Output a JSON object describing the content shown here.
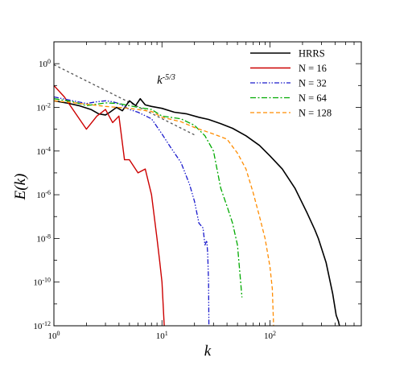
{
  "chart_data": {
    "type": "line",
    "title": "",
    "xlabel": "k",
    "ylabel": "E(k)",
    "xscale": "log",
    "yscale": "log",
    "xlim": [
      1,
      700
    ],
    "ylim": [
      1e-12,
      10
    ],
    "grid": false,
    "legend_position": "top-right",
    "x_tick_labels": [
      {
        "value": 1,
        "base": "10",
        "exp": "0"
      },
      {
        "value": 10,
        "base": "10",
        "exp": "1"
      },
      {
        "value": 100,
        "base": "10",
        "exp": "2"
      }
    ],
    "y_tick_labels": [
      {
        "value": 1,
        "base": "10",
        "exp": "0"
      },
      {
        "value": 0.01,
        "base": "10",
        "exp": "-2"
      },
      {
        "value": 0.0001,
        "base": "10",
        "exp": "-4"
      },
      {
        "value": 1e-06,
        "base": "10",
        "exp": "-6"
      },
      {
        "value": 1e-08,
        "base": "10",
        "exp": "-8"
      },
      {
        "value": 1e-10,
        "base": "10",
        "exp": "-10"
      },
      {
        "value": 1e-12,
        "base": "10",
        "exp": "-12"
      }
    ],
    "annotation": {
      "text": "k",
      "sup": "-5/3",
      "x": 9.0,
      "y": 0.12
    },
    "reference_line": {
      "x": [
        1,
        20
      ],
      "y": [
        0.9,
        0.00055
      ],
      "color": "#555555",
      "dash": "3,3"
    },
    "series": [
      {
        "name": "HRRS",
        "color": "#000000",
        "dash": "",
        "width": 1.6,
        "x": [
          1,
          1.3,
          1.7,
          2.2,
          2.6,
          3.0,
          3.3,
          3.8,
          4.3,
          5.0,
          5.7,
          6.3,
          7.0,
          8,
          10,
          13,
          17,
          22,
          27,
          35,
          45,
          60,
          80,
          100,
          130,
          170,
          220,
          260,
          280,
          330,
          380,
          410,
          430,
          435,
          440
        ],
        "y": [
          0.02,
          0.016,
          0.012,
          0.008,
          0.005,
          0.0045,
          0.006,
          0.01,
          0.007,
          0.02,
          0.012,
          0.025,
          0.013,
          0.011,
          0.009,
          0.006,
          0.005,
          0.0035,
          0.0028,
          0.0018,
          0.0011,
          0.0005,
          0.00018,
          6e-05,
          1.5e-05,
          2e-06,
          1.5e-07,
          2.5e-08,
          1e-08,
          8e-10,
          3e-11,
          3e-12,
          1.6e-12,
          1.2e-12,
          1e-12
        ]
      },
      {
        "name": "N = 16",
        "color": "#cc0000",
        "dash": "",
        "width": 1.4,
        "x": [
          1,
          1.25,
          1.5,
          2,
          2.5,
          3,
          3.5,
          4,
          4.5,
          5,
          6,
          7,
          8,
          9,
          9.5,
          10,
          10.5
        ],
        "y": [
          0.1,
          0.03,
          0.008,
          0.001,
          0.004,
          0.008,
          0.002,
          0.004,
          4e-05,
          4e-05,
          1e-05,
          1.5e-05,
          1e-06,
          1e-08,
          1e-09,
          1e-10,
          1e-12
        ]
      },
      {
        "name": "N = 32",
        "color": "#1a1acc",
        "dash": "6,2,1.5,2,1.5,2",
        "width": 1.3,
        "x": [
          1,
          1.5,
          2,
          2.5,
          3,
          3.5,
          4,
          5,
          6,
          8,
          10,
          12,
          15,
          18,
          20,
          22,
          24,
          25,
          26,
          26.5,
          27,
          27.2
        ],
        "y": [
          0.03,
          0.02,
          0.015,
          0.018,
          0.02,
          0.018,
          0.015,
          0.008,
          0.006,
          0.003,
          0.0006,
          0.00015,
          3e-05,
          3e-06,
          5e-07,
          5e-08,
          3e-08,
          5e-09,
          8e-09,
          2e-09,
          1e-10,
          1e-12
        ]
      },
      {
        "name": "N = 64",
        "color": "#00aa00",
        "dash": "7,2.5,2,2.5",
        "width": 1.3,
        "x": [
          1,
          1.5,
          2,
          3,
          4,
          6,
          8,
          10,
          15,
          20,
          25,
          30,
          35,
          40,
          45,
          50,
          55
        ],
        "y": [
          0.025,
          0.018,
          0.012,
          0.016,
          0.015,
          0.01,
          0.008,
          0.004,
          0.003,
          0.0015,
          0.0005,
          0.0001,
          2e-06,
          3e-07,
          5e-08,
          5e-09,
          2e-11
        ]
      },
      {
        "name": "N = 128",
        "color": "#ff8c00",
        "dash": "5,3",
        "width": 1.3,
        "x": [
          1,
          2,
          3,
          5,
          8,
          10,
          15,
          20,
          30,
          40,
          50,
          60,
          70,
          80,
          90,
          100,
          105,
          108
        ],
        "y": [
          0.02,
          0.014,
          0.011,
          0.009,
          0.0065,
          0.0035,
          0.0022,
          0.0012,
          0.0006,
          0.00035,
          8e-05,
          1.5e-05,
          1.2e-06,
          1e-07,
          1e-08,
          5e-10,
          5e-11,
          1e-12
        ]
      }
    ]
  }
}
